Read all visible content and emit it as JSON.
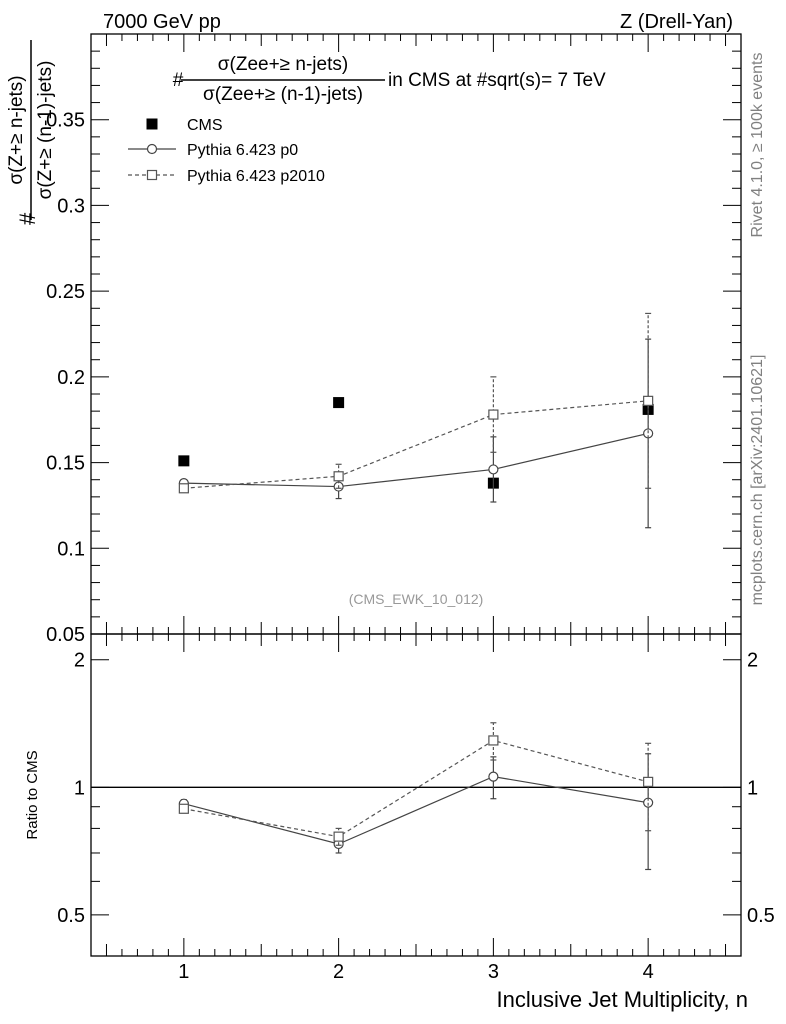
{
  "header": {
    "left": "7000 GeV pp",
    "right": "Z (Drell-Yan)"
  },
  "side_labels": {
    "rivet": "Rivet 4.1.0, ≥ 100k events",
    "mcplots": "mcplots.cern.ch [arXiv:2401.10621]"
  },
  "title": {
    "prefix": "#",
    "numerator": "σ(Zee+≥ n-jets)",
    "denominator": "σ(Zee+≥ (n-1)-jets)",
    "suffix": "in CMS at #sqrt(s)= 7 TeV"
  },
  "ylabel": {
    "prefix": "#",
    "numerator": "σ(Z+≥ n-jets)",
    "denominator": "σ(Z+≥ (n-1)-jets)"
  },
  "ratio_ylabel": "Ratio to CMS",
  "xlabel": "Inclusive Jet Multiplicity, n",
  "watermark": "(CMS_EWK_10_012)",
  "colors": {
    "cms": "#000000",
    "p0": "#444444",
    "p2010": "#555555",
    "watermark": "#999999",
    "side": "#808080"
  },
  "chart_data": [
    {
      "type": "scatter",
      "panel": "main",
      "xlim": [
        0.4,
        4.6
      ],
      "ylim": [
        0.05,
        0.4
      ],
      "x": [
        1,
        2,
        3,
        4
      ],
      "xticks": [
        1,
        2,
        3,
        4
      ],
      "xtick_labels": [
        "1",
        "2",
        "3",
        "4"
      ],
      "yticks": [
        0.05,
        0.1,
        0.15,
        0.2,
        0.25,
        0.3,
        0.35
      ],
      "ytick_labels": [
        "0.05",
        "0.1",
        "0.15",
        "0.2",
        "0.25",
        "0.3",
        "0.35"
      ],
      "legend_position": "top-left",
      "series": [
        {
          "name": "CMS",
          "marker": "filled-square",
          "line": "none",
          "values": [
            0.151,
            0.185,
            0.138,
            0.181
          ],
          "err": [
            0,
            0,
            0,
            0
          ]
        },
        {
          "name": "Pythia 6.423 p0",
          "marker": "open-circle",
          "line": "solid",
          "values": [
            0.138,
            0.136,
            0.146,
            0.167
          ],
          "err": [
            0.002,
            0.007,
            0.019,
            0.055
          ]
        },
        {
          "name": "Pythia 6.423 p2010",
          "marker": "open-square",
          "line": "dashed",
          "values": [
            0.135,
            0.142,
            0.178,
            0.186
          ],
          "err": [
            0.002,
            0.007,
            0.022,
            0.051
          ]
        }
      ]
    },
    {
      "type": "scatter",
      "panel": "ratio",
      "xlim": [
        0.4,
        4.6
      ],
      "ylim": [
        0.4,
        2.3
      ],
      "yscale": "log",
      "reference_line": 1,
      "x": [
        1,
        2,
        3,
        4
      ],
      "yticks": [
        0.5,
        1,
        2
      ],
      "ytick_labels": [
        "0.5",
        "1",
        "2"
      ],
      "series": [
        {
          "name": "Pythia 6.423 p0",
          "marker": "open-circle",
          "line": "solid",
          "values": [
            0.915,
            0.735,
            1.06,
            0.92
          ],
          "err": [
            0.02,
            0.035,
            0.12,
            0.28
          ]
        },
        {
          "name": "Pythia 6.423 p2010",
          "marker": "open-square",
          "line": "dashed",
          "values": [
            0.89,
            0.765,
            1.29,
            1.03
          ],
          "err": [
            0.02,
            0.035,
            0.13,
            0.24
          ]
        }
      ]
    }
  ]
}
